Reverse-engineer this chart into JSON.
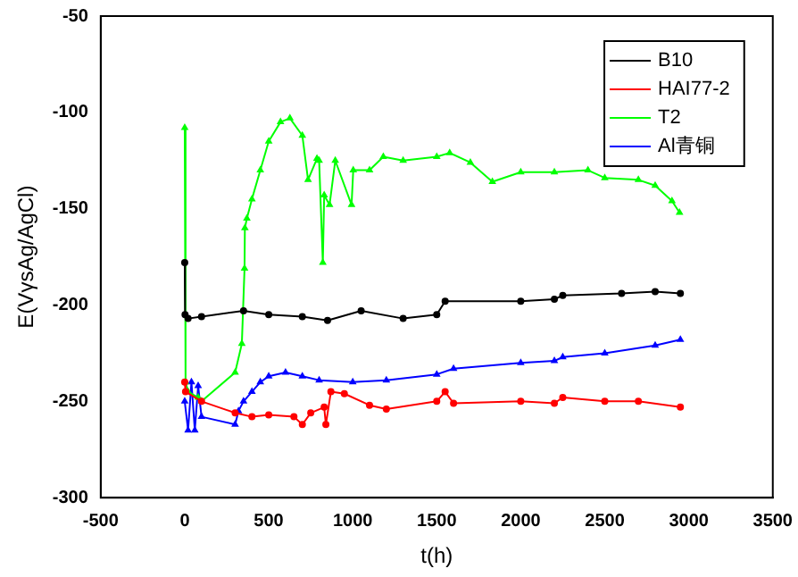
{
  "chart_data": {
    "type": "line",
    "xlabel": "t(h)",
    "ylabel": "E(VγsAg/AgCl)",
    "xlim": [
      -500,
      3500
    ],
    "xticks": [
      -500,
      0,
      500,
      1000,
      1500,
      2000,
      2500,
      3000,
      3500
    ],
    "ylim": [
      -300,
      -50
    ],
    "yticks": [
      -300,
      -250,
      -200,
      -150,
      -100,
      -50
    ],
    "grid": false,
    "legend": "top right",
    "line_style": "solid",
    "series": [
      {
        "name": "B10",
        "color": "#000000",
        "marker": "circle",
        "x": [
          0,
          2,
          20,
          100,
          350,
          500,
          700,
          850,
          1050,
          1300,
          1500,
          1550,
          2000,
          2200,
          2250,
          2600,
          2800,
          2950
        ],
        "values": [
          -178,
          -205,
          -207,
          -206,
          -203,
          -205,
          -206,
          -208,
          -203,
          -207,
          -205,
          -198,
          -198,
          -197,
          -195,
          -194,
          -193,
          -194
        ]
      },
      {
        "name": "HAI77-2",
        "color": "#ff0000",
        "marker": "circle",
        "x": [
          0,
          5,
          100,
          300,
          400,
          500,
          650,
          700,
          750,
          830,
          840,
          870,
          950,
          1100,
          1200,
          1500,
          1550,
          1600,
          2000,
          2200,
          2250,
          2500,
          2700,
          2950
        ],
        "values": [
          -240,
          -245,
          -250,
          -256,
          -258,
          -257,
          -258,
          -262,
          -256,
          -253,
          -262,
          -245,
          -246,
          -252,
          -254,
          -250,
          -245,
          -251,
          -250,
          -251,
          -248,
          -250,
          -250,
          -253
        ]
      },
      {
        "name": "T2",
        "color": "#00ff00",
        "marker": "triangle",
        "x": [
          0,
          5,
          20,
          80,
          100,
          300,
          340,
          356,
          358,
          370,
          400,
          450,
          500,
          570,
          626,
          700,
          734,
          787,
          800,
          822,
          830,
          862,
          896,
          993,
          1003,
          1100,
          1182,
          1300,
          1500,
          1577,
          1700,
          1831,
          2000,
          2200,
          2400,
          2500,
          2700,
          2800,
          2900,
          2945
        ],
        "values": [
          -108,
          -240,
          -245,
          -248,
          -250,
          -235,
          -220,
          -181,
          -160,
          -155,
          -145,
          -130,
          -115,
          -105,
          -103,
          -112,
          -135,
          -124,
          -125,
          -178,
          -143,
          -148,
          -125,
          -148,
          -130,
          -130,
          -123,
          -125,
          -123,
          -121,
          -126,
          -136,
          -131,
          -131,
          -130,
          -134,
          -135,
          -138,
          -146,
          -152
        ]
      },
      {
        "name": "Al青铜",
        "color": "#0000ff",
        "marker": "triangle",
        "x": [
          0,
          20,
          40,
          60,
          80,
          100,
          300,
          320,
          350,
          400,
          450,
          500,
          600,
          700,
          800,
          1000,
          1200,
          1500,
          1600,
          2000,
          2200,
          2250,
          2500,
          2800,
          2950
        ],
        "values": [
          -250,
          -265,
          -240,
          -265,
          -242,
          -258,
          -262,
          -255,
          -250,
          -245,
          -240,
          -237,
          -235,
          -237,
          -239,
          -240,
          -239,
          -236,
          -233,
          -230,
          -229,
          -227,
          -225,
          -221,
          -218
        ]
      }
    ]
  }
}
